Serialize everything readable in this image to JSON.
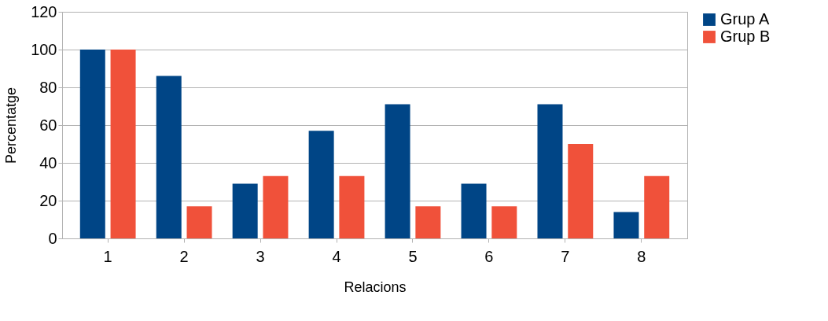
{
  "chart_data": {
    "type": "bar",
    "xlabel": "Relacions",
    "ylabel": "Percentatge",
    "categories": [
      "1",
      "2",
      "3",
      "4",
      "5",
      "6",
      "7",
      "8"
    ],
    "series": [
      {
        "name": "Grup A",
        "color": "#004586",
        "values": [
          100,
          86,
          29,
          57,
          71,
          29,
          71,
          14
        ]
      },
      {
        "name": "Grup B",
        "color": "#f0513a",
        "values": [
          100,
          17,
          33,
          33,
          17,
          17,
          50,
          33
        ]
      }
    ],
    "ylim": [
      0,
      120
    ],
    "yticks": [
      0,
      20,
      40,
      60,
      80,
      100,
      120
    ],
    "grid": "y",
    "legend": "right"
  }
}
